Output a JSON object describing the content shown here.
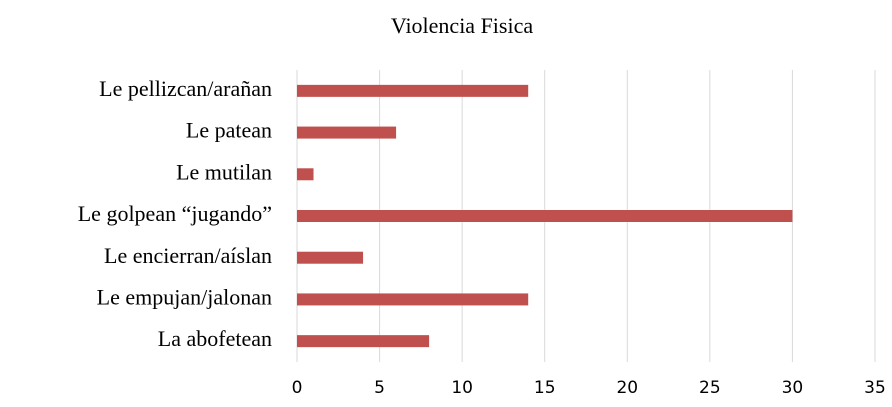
{
  "chart_data": {
    "type": "bar",
    "title": "Violencia Fisica",
    "categories": [
      "Le pellizcan/arañan",
      "Le patean",
      "Le mutilan",
      "Le golpean “jugando”",
      "Le encierran/aíslan",
      "Le empujan/jalonan",
      "La abofetean"
    ],
    "values": [
      14,
      6,
      1,
      30,
      4,
      14,
      8
    ],
    "color": "#c0504d",
    "xlim": [
      0,
      35
    ],
    "xticks": [
      0,
      5,
      10,
      15,
      20,
      25,
      30,
      35
    ],
    "grid": true
  }
}
